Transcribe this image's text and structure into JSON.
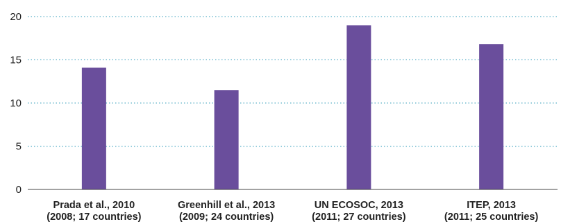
{
  "chart_data": {
    "type": "bar",
    "categories": [
      {
        "line1": "Prada et al., 2010",
        "line2": "(2008; 17 countries)"
      },
      {
        "line1": "Greenhill et al., 2013",
        "line2": "(2009; 24 countries)"
      },
      {
        "line1": "UN ECOSOC, 2013",
        "line2": "(2011; 27 countries)"
      },
      {
        "line1": "ITEP, 2013",
        "line2": "(2011; 25 countries)"
      }
    ],
    "values": [
      14.1,
      11.5,
      19.0,
      16.8
    ],
    "yticks": [
      "0",
      "5",
      "10",
      "15",
      "20"
    ],
    "ylim": [
      0,
      20
    ],
    "grid": "horizontal-dotted",
    "colors": {
      "bar": "#6a4e9c",
      "grid": "#5bb0c8",
      "axis": "#444444"
    }
  }
}
